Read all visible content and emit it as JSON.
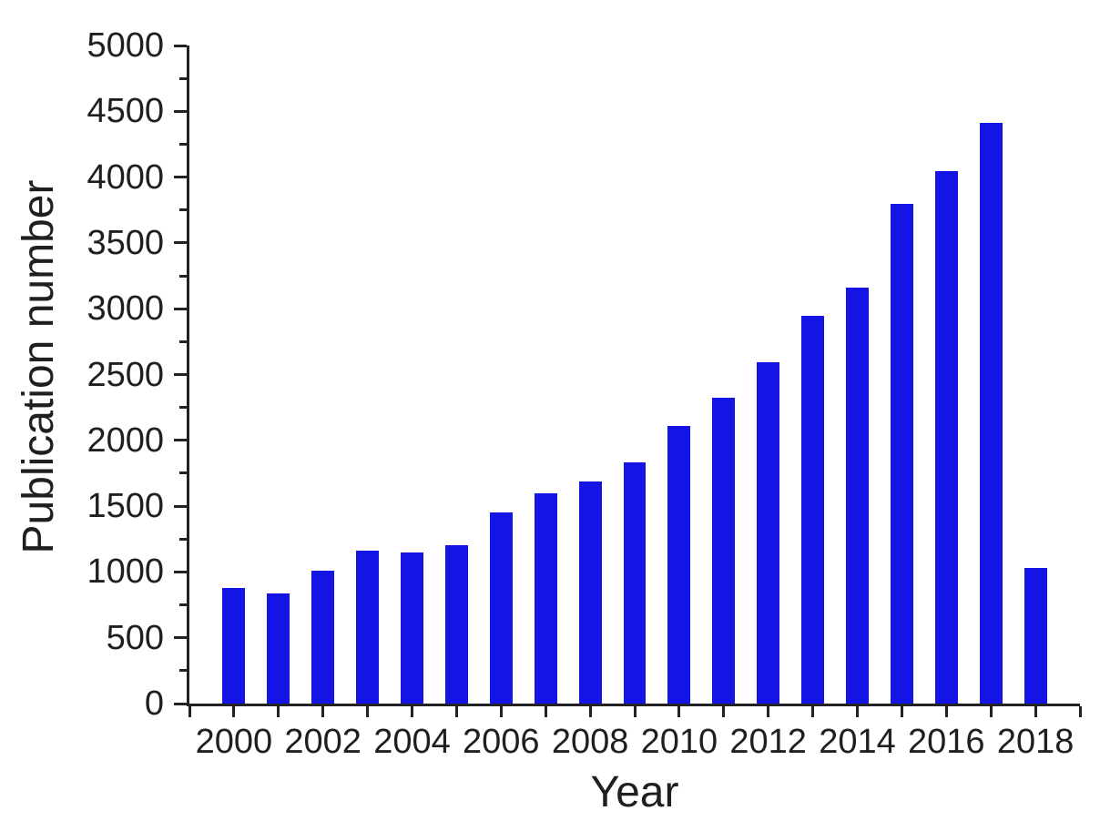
{
  "chart_data": {
    "type": "bar",
    "title": "",
    "xlabel": "Year",
    "ylabel": "Publication number",
    "categories": [
      2000,
      2001,
      2002,
      2003,
      2004,
      2005,
      2006,
      2007,
      2008,
      2009,
      2010,
      2011,
      2012,
      2013,
      2014,
      2015,
      2016,
      2017,
      2018
    ],
    "values": [
      875,
      840,
      1010,
      1160,
      1150,
      1205,
      1450,
      1600,
      1685,
      1830,
      2110,
      2325,
      2595,
      2945,
      3160,
      3800,
      4045,
      4410,
      1030
    ],
    "xlim": [
      1999,
      2019
    ],
    "ylim": [
      0,
      5000
    ],
    "y_major_tick_step": 500,
    "y_minor_tick_step": 250,
    "x_tick_step": 1,
    "x_label_step": 2,
    "bar_width_years": 0.51,
    "grid": false,
    "legend": "none",
    "tick_direction": "out",
    "colors": {
      "bar": "#1414e4",
      "axis": "#222222",
      "text": "#1f1f1f",
      "background": "#ffffff"
    }
  }
}
